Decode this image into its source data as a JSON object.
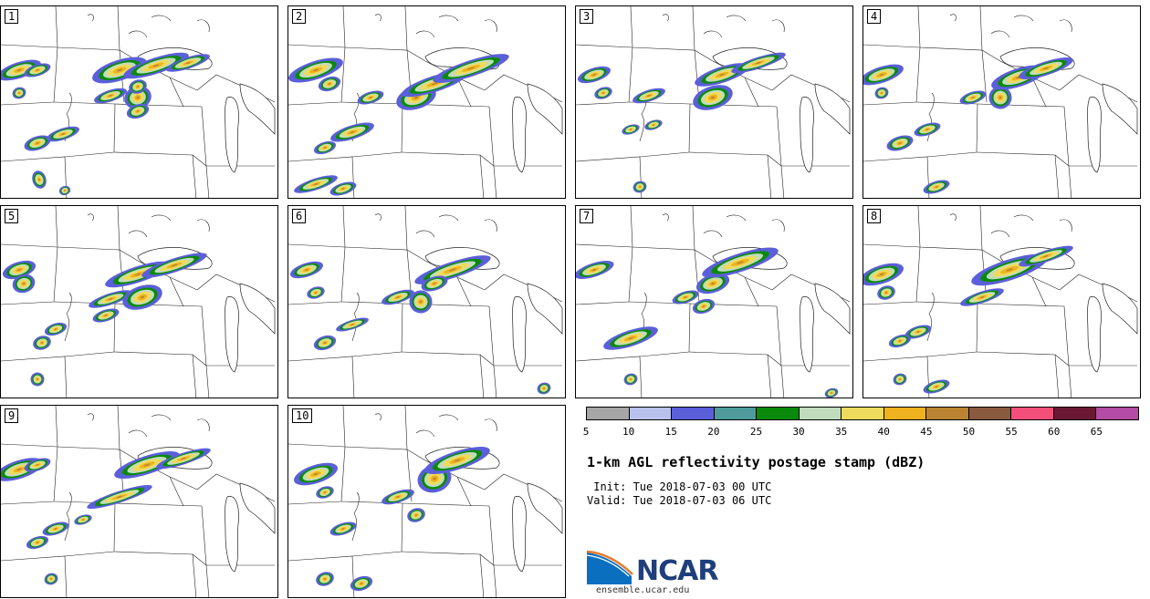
{
  "panels": [
    {
      "label": "1"
    },
    {
      "label": "2"
    },
    {
      "label": "3"
    },
    {
      "label": "4"
    },
    {
      "label": "5"
    },
    {
      "label": "6"
    },
    {
      "label": "7"
    },
    {
      "label": "8"
    },
    {
      "label": "9"
    },
    {
      "label": "10"
    }
  ],
  "colorbar": {
    "colors": [
      "#a6a6a6",
      "#b8c2ec",
      "#5b5fd9",
      "#4f9b9b",
      "#0a8a0a",
      "#c0dcbc",
      "#eedb5e",
      "#efb21e",
      "#bb8433",
      "#8a5a3f",
      "#f2507a",
      "#6a1834",
      "#b24ca5"
    ],
    "tick_labels": [
      "5",
      "10",
      "15",
      "20",
      "25",
      "30",
      "35",
      "40",
      "45",
      "50",
      "55",
      "60",
      "65"
    ]
  },
  "title": "1-km AGL reflectivity postage stamp (dBZ)",
  "init_text": " Init: Tue 2018-07-03 00 UTC",
  "valid_text": "Valid: Tue 2018-07-03 06 UTC",
  "logo": {
    "name": "NCAR",
    "text": "NCAR",
    "colors": {
      "blue": "#0a6fbf",
      "navy": "#1f3e7c",
      "orange": "#e87b2b"
    }
  },
  "site": "ensemble.ucar.edu"
}
